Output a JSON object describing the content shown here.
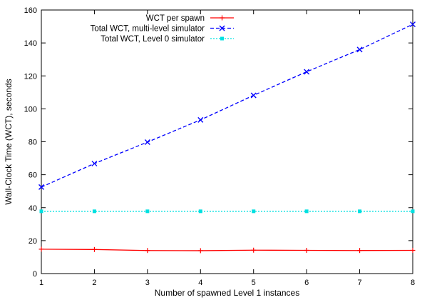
{
  "chart_data": {
    "type": "line",
    "xlabel": "Number of spawned Level 1 instances",
    "ylabel": "Wall-Clock Time (WCT), seconds",
    "xlim": [
      1,
      8
    ],
    "ylim": [
      0,
      160
    ],
    "x_ticks": [
      1,
      2,
      3,
      4,
      5,
      6,
      7,
      8
    ],
    "y_ticks": [
      0,
      20,
      40,
      60,
      80,
      100,
      120,
      140,
      160
    ],
    "grid": false,
    "legend_position": "top-right",
    "x": [
      1,
      2,
      3,
      4,
      5,
      6,
      7,
      8
    ],
    "series": [
      {
        "name": "WCT per spawn",
        "color": "#ff0000",
        "line_style": "solid",
        "marker": "plus",
        "values": [
          14.8,
          14.6,
          14.0,
          13.9,
          14.2,
          14.1,
          14.0,
          14.1
        ]
      },
      {
        "name": "Total WCT, multi-level simulator",
        "color": "#0000ff",
        "line_style": "dashed",
        "marker": "x",
        "values": [
          52.5,
          66.8,
          79.8,
          93.3,
          108.2,
          122.5,
          136.0,
          151.3
        ]
      },
      {
        "name": "Total WCT, Level 0 simulator",
        "color": "#00e0e0",
        "line_style": "dotted",
        "marker": "square",
        "values": [
          37.8,
          37.8,
          37.8,
          37.8,
          37.8,
          37.8,
          37.8,
          37.8
        ]
      }
    ]
  }
}
